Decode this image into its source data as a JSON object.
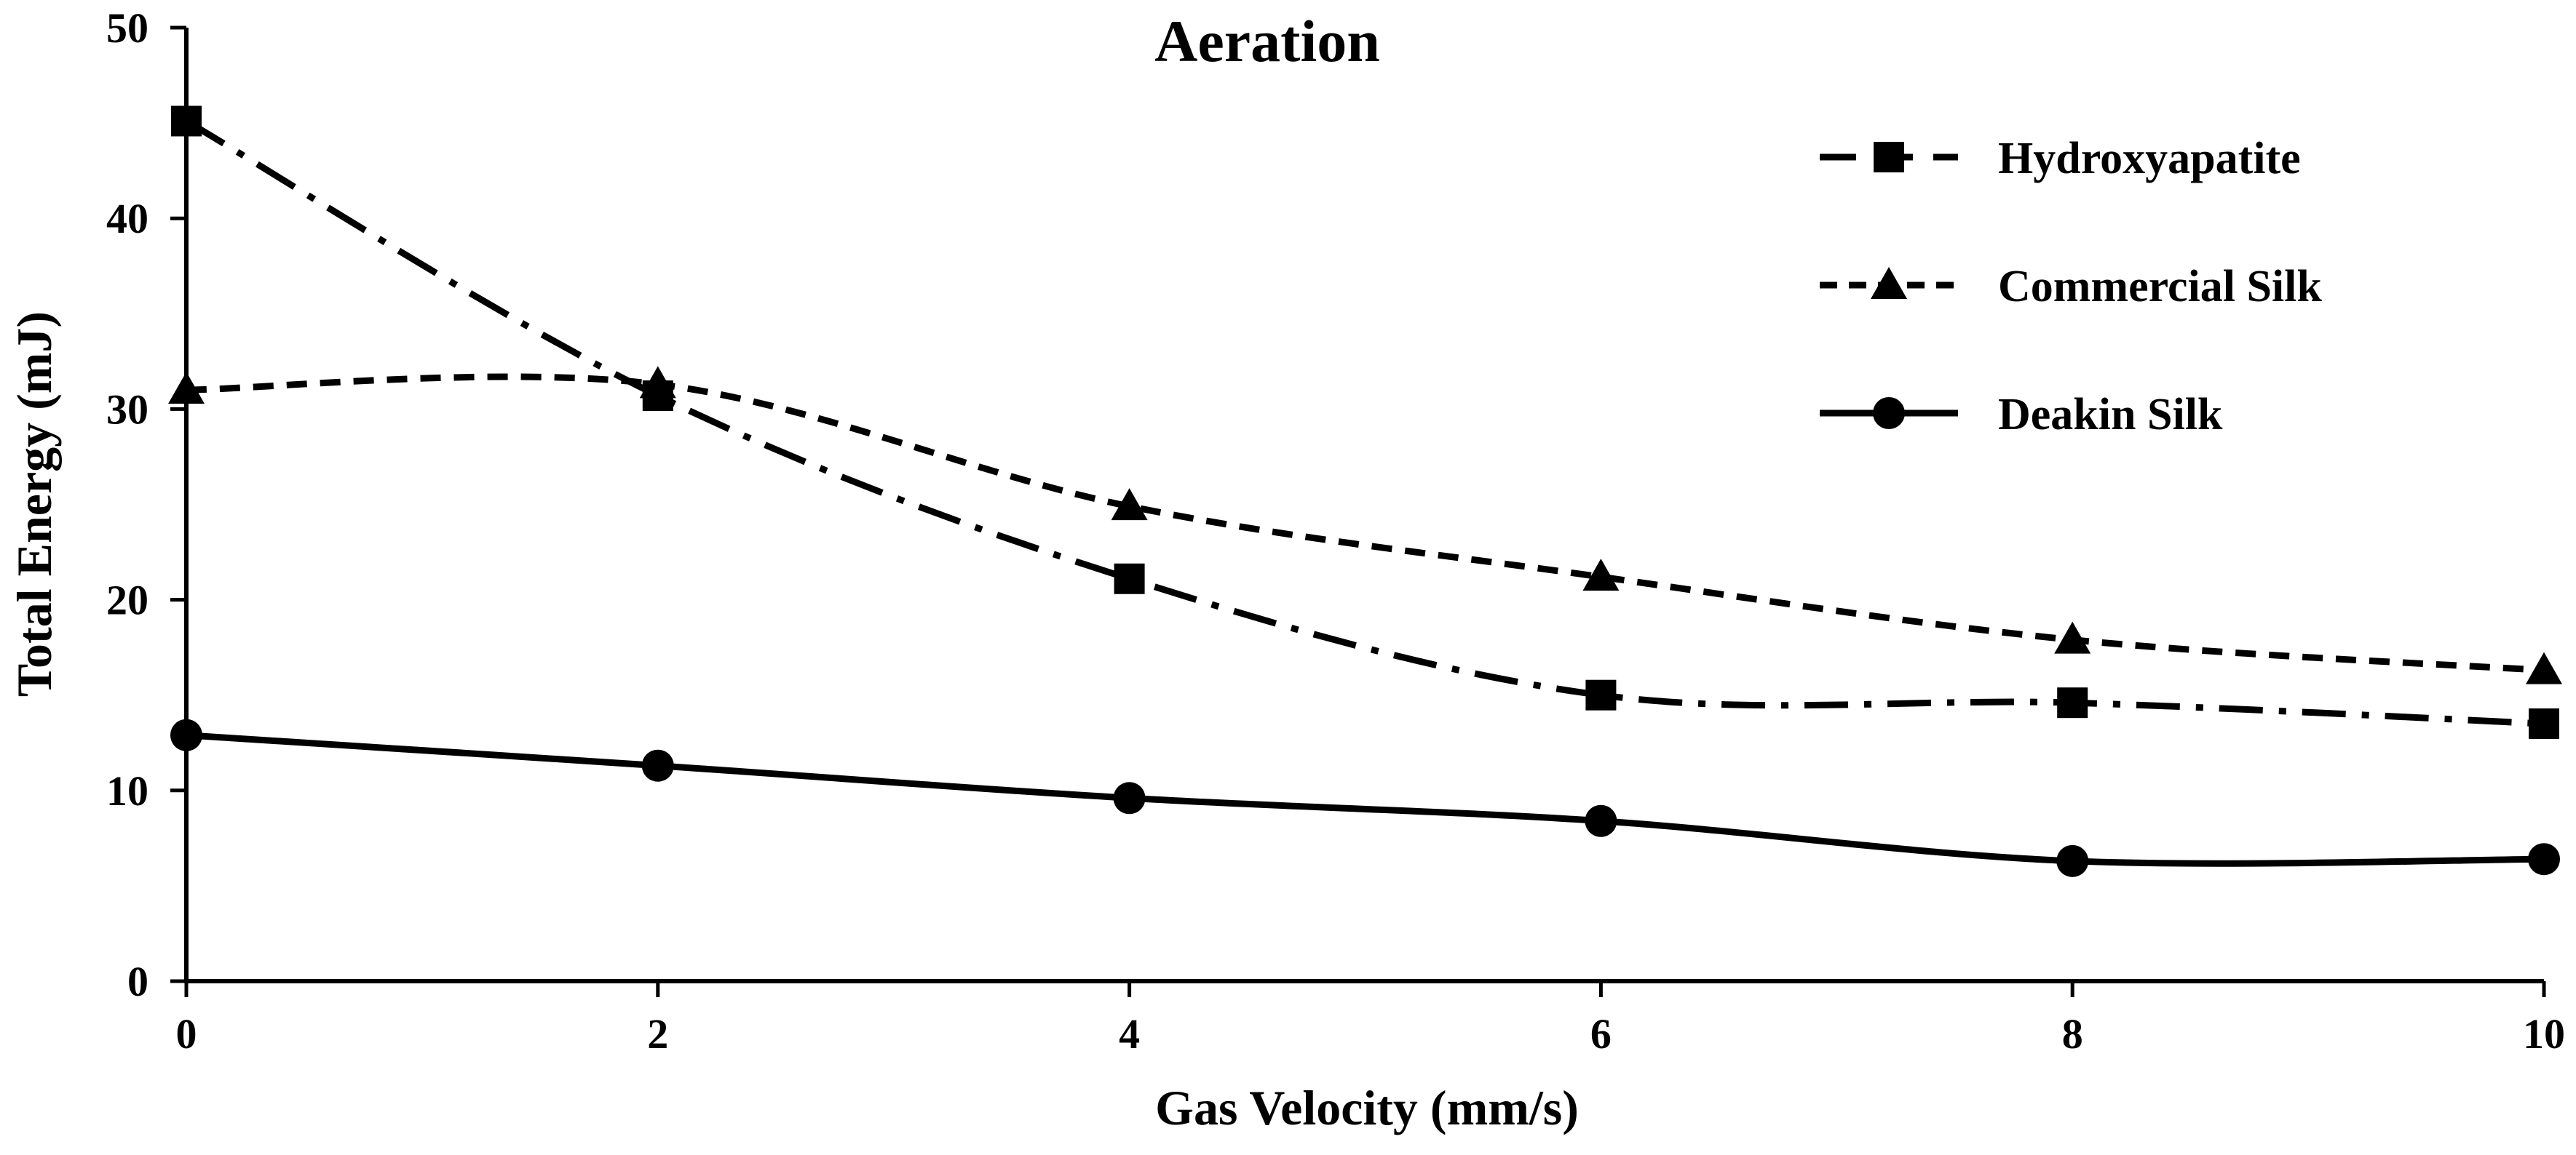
{
  "chart_data": {
    "type": "line",
    "title": "Aeration",
    "xlabel": "Gas Velocity (mm/s)",
    "ylabel": "Total Energy (mJ)",
    "xlim": [
      0,
      10
    ],
    "ylim": [
      0,
      50
    ],
    "x_ticks": [
      0,
      2,
      4,
      6,
      8,
      10
    ],
    "y_ticks": [
      0,
      10,
      20,
      30,
      40,
      50
    ],
    "x_tick_labels": [
      "0",
      "2",
      "4",
      "6",
      "8",
      "10"
    ],
    "y_tick_labels": [
      "0",
      "10",
      "20",
      "30",
      "40",
      "50"
    ],
    "grid": false,
    "legend_position": "top-right",
    "x": [
      0,
      2,
      4,
      6,
      8,
      10
    ],
    "series": [
      {
        "name": "Hydroxyapatite",
        "marker": "square",
        "line_style": "dash-dot",
        "values": [
          45.1,
          30.7,
          21.1,
          15.0,
          14.6,
          13.5
        ]
      },
      {
        "name": "Commercial Silk",
        "marker": "triangle",
        "line_style": "dashed",
        "values": [
          31.0,
          31.3,
          24.9,
          21.2,
          17.9,
          16.3
        ]
      },
      {
        "name": "Deakin Silk",
        "marker": "circle",
        "line_style": "solid",
        "values": [
          12.9,
          11.3,
          9.6,
          8.4,
          6.3,
          6.4
        ]
      }
    ]
  }
}
